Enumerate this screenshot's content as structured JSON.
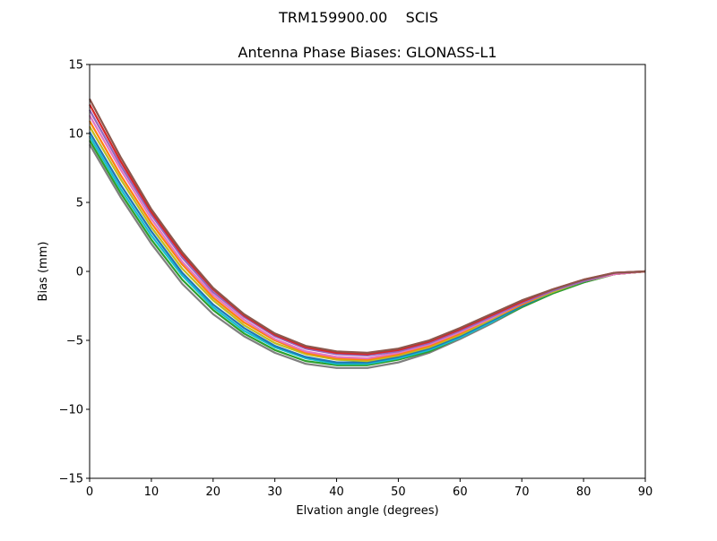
{
  "figure": {
    "suptitle": "TRM159900.00    SCIS"
  },
  "chart_data": {
    "type": "line",
    "title": "Antenna Phase Biases: GLONASS-L1",
    "xlabel": "Elvation angle (degrees)",
    "ylabel": "Bias (mm)",
    "xlim": [
      0,
      90
    ],
    "ylim": [
      -15,
      15
    ],
    "xticks": [
      0,
      10,
      20,
      30,
      40,
      50,
      60,
      70,
      80,
      90
    ],
    "yticks": [
      -15,
      -10,
      -5,
      0,
      5,
      10,
      15
    ],
    "ytick_labels": [
      "−15",
      "−10",
      "−5",
      "0",
      "5",
      "10",
      "15"
    ],
    "grid": false,
    "legend": "none",
    "x": [
      0,
      5,
      10,
      15,
      20,
      25,
      30,
      35,
      40,
      45,
      50,
      55,
      60,
      65,
      70,
      75,
      80,
      85,
      90
    ],
    "series": [
      {
        "color": "#7f7f7f",
        "values": [
          9.2,
          5.4,
          2.0,
          -0.9,
          -3.1,
          -4.7,
          -5.9,
          -6.7,
          -7.0,
          -7.0,
          -6.6,
          -5.9,
          -4.9,
          -3.8,
          -2.6,
          -1.6,
          -0.8,
          -0.2,
          0.0
        ]
      },
      {
        "color": "#2ca02c",
        "values": [
          9.5,
          5.7,
          2.3,
          -0.6,
          -2.8,
          -4.5,
          -5.7,
          -6.5,
          -6.8,
          -6.8,
          -6.4,
          -5.8,
          -4.8,
          -3.7,
          -2.6,
          -1.6,
          -0.8,
          -0.2,
          0.0
        ]
      },
      {
        "color": "#17becf",
        "values": [
          9.8,
          6.0,
          2.6,
          -0.3,
          -2.6,
          -4.3,
          -5.5,
          -6.3,
          -6.7,
          -6.7,
          -6.3,
          -5.7,
          -4.8,
          -3.7,
          -2.5,
          -1.5,
          -0.7,
          -0.2,
          0.0
        ]
      },
      {
        "color": "#1f77b4",
        "values": [
          10.1,
          6.3,
          2.9,
          -0.1,
          -2.4,
          -4.1,
          -5.4,
          -6.2,
          -6.6,
          -6.6,
          -6.2,
          -5.6,
          -4.7,
          -3.6,
          -2.5,
          -1.5,
          -0.7,
          -0.2,
          0.0
        ]
      },
      {
        "color": "#bcbd22",
        "values": [
          10.5,
          6.7,
          3.2,
          0.2,
          -2.1,
          -3.9,
          -5.2,
          -6.0,
          -6.4,
          -6.5,
          -6.1,
          -5.5,
          -4.6,
          -3.5,
          -2.4,
          -1.5,
          -0.7,
          -0.2,
          0.0
        ]
      },
      {
        "color": "#ff7f0e",
        "values": [
          10.9,
          7.0,
          3.5,
          0.5,
          -1.9,
          -3.7,
          -5.0,
          -5.9,
          -6.3,
          -6.4,
          -6.0,
          -5.4,
          -4.5,
          -3.4,
          -2.4,
          -1.4,
          -0.7,
          -0.2,
          0.0
        ]
      },
      {
        "color": "#e377c2",
        "values": [
          11.3,
          7.4,
          3.8,
          0.7,
          -1.7,
          -3.5,
          -4.9,
          -5.8,
          -6.2,
          -6.3,
          -5.9,
          -5.3,
          -4.4,
          -3.4,
          -2.3,
          -1.4,
          -0.7,
          -0.2,
          0.0
        ]
      },
      {
        "color": "#9467bd",
        "values": [
          11.7,
          7.7,
          4.1,
          1.0,
          -1.5,
          -3.3,
          -4.7,
          -5.6,
          -6.0,
          -6.1,
          -5.8,
          -5.2,
          -4.3,
          -3.3,
          -2.3,
          -1.4,
          -0.7,
          -0.1,
          0.0
        ]
      },
      {
        "color": "#d62728",
        "values": [
          12.1,
          8.0,
          4.3,
          1.2,
          -1.3,
          -3.2,
          -4.6,
          -5.5,
          -5.9,
          -6.0,
          -5.7,
          -5.1,
          -4.2,
          -3.2,
          -2.2,
          -1.3,
          -0.6,
          -0.1,
          0.0
        ]
      },
      {
        "color": "#8c564b",
        "values": [
          12.5,
          8.3,
          4.5,
          1.4,
          -1.2,
          -3.1,
          -4.5,
          -5.4,
          -5.8,
          -5.9,
          -5.6,
          -5.0,
          -4.1,
          -3.1,
          -2.1,
          -1.3,
          -0.6,
          -0.1,
          0.0
        ]
      }
    ]
  }
}
